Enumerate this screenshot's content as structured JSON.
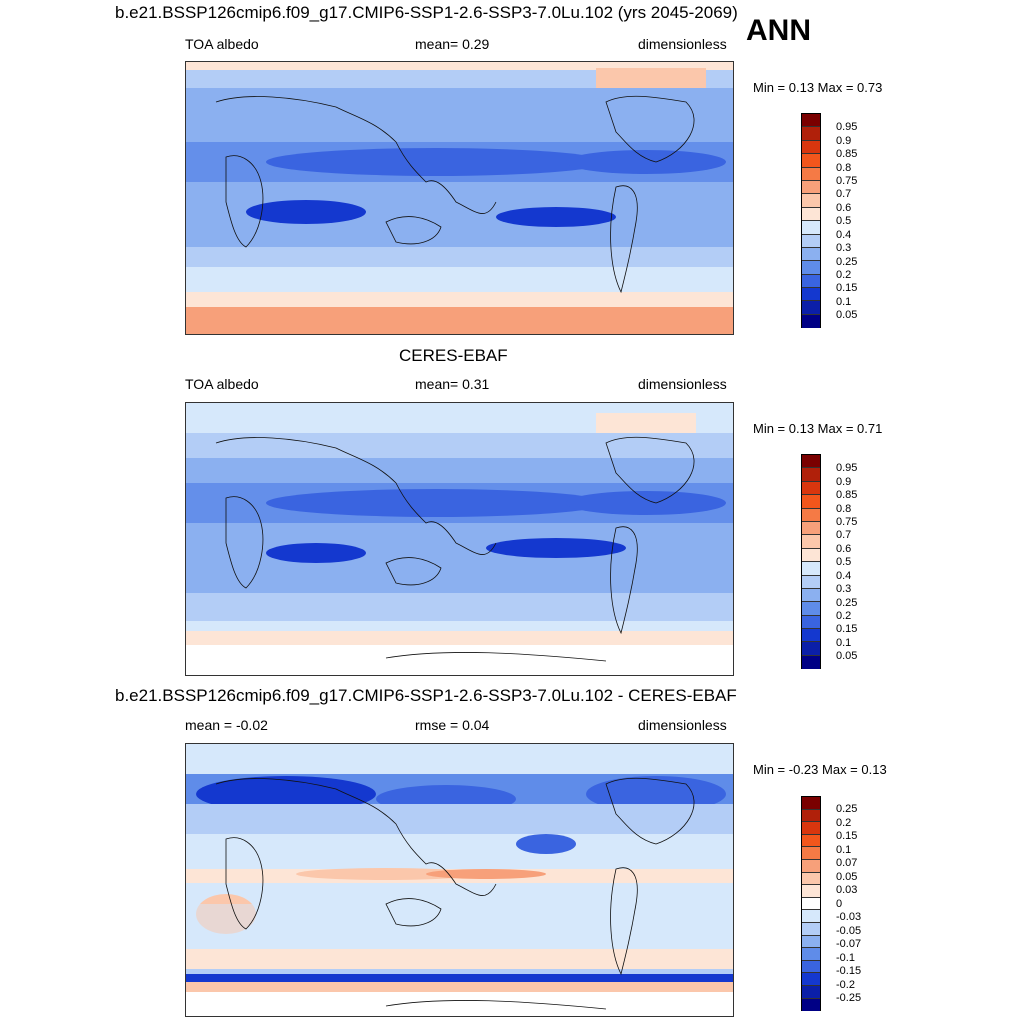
{
  "season": "ANN",
  "panels": [
    {
      "id": "model",
      "title": "b.e21.BSSP126cmip6.f09_g17.CMIP6-SSP1-2.6-SSP3-7.0Lu.102 (yrs 2045-2069)",
      "left_label": "TOA albedo",
      "center_label": "mean=   0.29",
      "right_label": "dimensionless",
      "minmax": "Min =   0.13 Max =   0.73",
      "levels": [
        "0.95",
        "0.9",
        "0.85",
        "0.8",
        "0.75",
        "0.7",
        "0.6",
        "0.5",
        "0.4",
        "0.3",
        "0.25",
        "0.2",
        "0.15",
        "0.1",
        "0.05"
      ]
    },
    {
      "id": "obs",
      "title": "CERES-EBAF",
      "left_label": "TOA albedo",
      "center_label": "mean=   0.31",
      "right_label": "dimensionless",
      "minmax": "Min =   0.13 Max =   0.71",
      "levels": [
        "0.95",
        "0.9",
        "0.85",
        "0.8",
        "0.75",
        "0.7",
        "0.6",
        "0.5",
        "0.4",
        "0.3",
        "0.25",
        "0.2",
        "0.15",
        "0.1",
        "0.05"
      ]
    },
    {
      "id": "diff",
      "title": "b.e21.BSSP126cmip6.f09_g17.CMIP6-SSP1-2.6-SSP3-7.0Lu.102 - CERES-EBAF",
      "left_label": "mean =  -0.02",
      "center_label": "rmse =   0.04",
      "right_label": "dimensionless",
      "minmax": "Min =  -0.23 Max =   0.13",
      "levels": [
        "0.25",
        "0.2",
        "0.15",
        "0.1",
        "0.07",
        "0.05",
        "0.03",
        "0",
        "-0.03",
        "-0.05",
        "-0.07",
        "-0.1",
        "-0.15",
        "-0.2",
        "-0.25"
      ]
    }
  ],
  "colors": {
    "abs_scale": [
      "#7a0000",
      "#b0200a",
      "#d8360e",
      "#f2561c",
      "#f57a45",
      "#f7a07a",
      "#fbc7ab",
      "#fde5d6",
      "#d6e8fb",
      "#b3cdf6",
      "#8bb0f0",
      "#5f8ce9",
      "#3a64e0",
      "#1438cf",
      "#0b1fa8",
      "#000085"
    ],
    "diff_scale": [
      "#7a0000",
      "#b0200a",
      "#d8360e",
      "#f2561c",
      "#f57a45",
      "#f7a07a",
      "#fbc7ab",
      "#fde5d6",
      "#ffffff",
      "#d6e8fb",
      "#b3cdf6",
      "#8bb0f0",
      "#5f8ce9",
      "#3a64e0",
      "#1438cf",
      "#0b1fa8",
      "#000085"
    ]
  }
}
